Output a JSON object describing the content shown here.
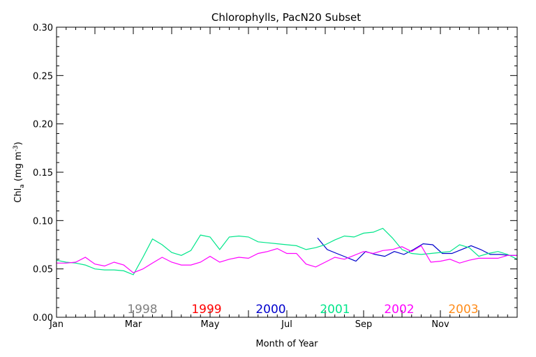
{
  "chart_data": {
    "type": "line",
    "title": "Chlorophylls, PacN20 Subset",
    "xlabel": "Month of Year",
    "ylabel": {
      "base": "Chl",
      "sub": "a",
      "units_open": " (mg m",
      "units_sup": "-3",
      "units_close": ")"
    },
    "xlim": [
      0,
      12
    ],
    "ylim": [
      0.0,
      0.3
    ],
    "x_ticks": [
      {
        "x": 0,
        "label": "Jan"
      },
      {
        "x": 2,
        "label": "Mar"
      },
      {
        "x": 4,
        "label": "May"
      },
      {
        "x": 6,
        "label": "Jul"
      },
      {
        "x": 8,
        "label": "Sep"
      },
      {
        "x": 10,
        "label": "Nov"
      }
    ],
    "y_ticks": [
      {
        "y": 0.0,
        "label": "0.00"
      },
      {
        "y": 0.05,
        "label": "0.05"
      },
      {
        "y": 0.1,
        "label": "0.10"
      },
      {
        "y": 0.15,
        "label": "0.15"
      },
      {
        "y": 0.2,
        "label": "0.20"
      },
      {
        "y": 0.25,
        "label": "0.25"
      },
      {
        "y": 0.3,
        "label": "0.30"
      }
    ],
    "legend_position": "bottom",
    "series": [
      {
        "name": "1998",
        "color": "#808080",
        "x": [],
        "y": []
      },
      {
        "name": "1999",
        "color": "#ff0000",
        "x": [],
        "y": []
      },
      {
        "name": "2000",
        "color": "#0000cc",
        "x": [
          6.8,
          7.05,
          7.3,
          7.55,
          7.8,
          8.05,
          8.3,
          8.55,
          8.8,
          9.05,
          9.3,
          9.55,
          9.8,
          10.05,
          10.3,
          10.55,
          10.8,
          11.05,
          11.3,
          11.55,
          11.8,
          12.0
        ],
        "y": [
          0.082,
          0.07,
          0.066,
          0.062,
          0.058,
          0.068,
          0.065,
          0.063,
          0.068,
          0.065,
          0.07,
          0.076,
          0.075,
          0.066,
          0.066,
          0.07,
          0.074,
          0.07,
          0.065,
          0.065,
          0.064,
          0.064
        ]
      },
      {
        "name": "2001",
        "color": "#00e68a",
        "x": [
          0.0,
          0.25,
          0.5,
          0.75,
          1.0,
          1.25,
          1.5,
          1.75,
          2.0,
          2.25,
          2.5,
          2.75,
          3.0,
          3.25,
          3.5,
          3.75,
          4.0,
          4.25,
          4.5,
          4.75,
          5.0,
          5.25,
          5.5,
          5.75,
          6.0,
          6.25,
          6.5,
          6.75,
          7.0,
          7.25,
          7.5,
          7.75,
          8.0,
          8.25,
          8.5,
          8.75,
          9.0,
          9.25,
          9.5,
          9.75,
          10.0,
          10.25,
          10.5,
          10.75,
          11.0,
          11.25,
          11.5,
          11.75,
          12.0
        ],
        "y": [
          0.059,
          0.057,
          0.056,
          0.054,
          0.05,
          0.049,
          0.049,
          0.048,
          0.044,
          0.062,
          0.081,
          0.075,
          0.067,
          0.064,
          0.069,
          0.085,
          0.083,
          0.07,
          0.083,
          0.084,
          0.083,
          0.078,
          0.077,
          0.076,
          0.075,
          0.074,
          0.07,
          0.072,
          0.075,
          0.08,
          0.084,
          0.083,
          0.087,
          0.088,
          0.092,
          0.082,
          0.07,
          0.066,
          0.065,
          0.066,
          0.067,
          0.068,
          0.075,
          0.072,
          0.063,
          0.066,
          0.068,
          0.065,
          0.06
        ]
      },
      {
        "name": "2002",
        "color": "#ff00ff",
        "x": [
          0.0,
          0.25,
          0.5,
          0.75,
          1.0,
          1.25,
          1.5,
          1.75,
          2.0,
          2.25,
          2.5,
          2.75,
          3.0,
          3.25,
          3.5,
          3.75,
          4.0,
          4.25,
          4.5,
          4.75,
          5.0,
          5.25,
          5.5,
          5.75,
          6.0,
          6.25,
          6.5,
          6.75,
          7.0,
          7.25,
          7.5,
          7.75,
          8.0,
          8.25,
          8.5,
          8.75,
          9.0,
          9.25,
          9.5,
          9.75,
          10.0,
          10.25,
          10.5,
          10.75,
          11.0,
          11.25,
          11.5,
          11.75,
          12.0
        ],
        "y": [
          0.056,
          0.056,
          0.057,
          0.062,
          0.055,
          0.053,
          0.057,
          0.054,
          0.046,
          0.05,
          0.056,
          0.062,
          0.057,
          0.054,
          0.054,
          0.057,
          0.063,
          0.057,
          0.06,
          0.062,
          0.061,
          0.066,
          0.068,
          0.071,
          0.066,
          0.066,
          0.055,
          0.052,
          0.057,
          0.062,
          0.06,
          0.064,
          0.068,
          0.066,
          0.069,
          0.07,
          0.073,
          0.068,
          0.074,
          0.057,
          0.058,
          0.06,
          0.056,
          0.059,
          0.061,
          0.061,
          0.061,
          0.064,
          0.064
        ]
      },
      {
        "name": "2003",
        "color": "#ff8c1a",
        "x": [],
        "y": []
      }
    ]
  }
}
